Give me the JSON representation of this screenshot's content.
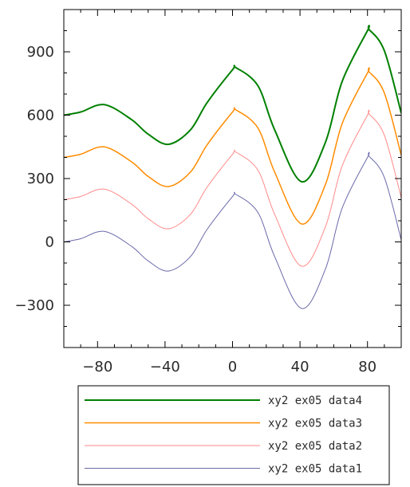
{
  "chart_data": {
    "type": "line",
    "title": "",
    "xlabel": "",
    "ylabel": "",
    "xlim": [
      -100,
      100
    ],
    "ylim": [
      -500,
      1100
    ],
    "xticks": [
      -80,
      -40,
      0,
      40,
      80
    ],
    "xtick_labels": [
      "−80",
      "−40",
      "0",
      "40",
      "80"
    ],
    "yticks": [
      -300,
      0,
      300,
      600,
      900
    ],
    "ytick_labels": [
      "−300",
      "0",
      "300",
      "600",
      "900"
    ],
    "grid": false,
    "legend_position": "bottom",
    "series": [
      {
        "name": "xy2 ex05 data4",
        "color": "#008000",
        "width": 2,
        "x": [
          -100,
          -90,
          -76,
          -60,
          -50,
          -38,
          -25,
          -15,
          0,
          2,
          15,
          25,
          41,
          55,
          65,
          80,
          81,
          90,
          100
        ],
        "y": [
          600,
          615,
          650,
          580,
          510,
          462,
          530,
          660,
          815,
          825,
          740,
          530,
          285,
          470,
          760,
          1000,
          1005,
          905,
          610
        ]
      },
      {
        "name": "xy2 ex05 data3",
        "color": "#ff8c00",
        "width": 1.5,
        "x": [
          -100,
          -90,
          -76,
          -60,
          -50,
          -38,
          -25,
          -15,
          0,
          2,
          15,
          25,
          41,
          55,
          65,
          80,
          81,
          90,
          100
        ],
        "y": [
          400,
          415,
          450,
          380,
          310,
          262,
          330,
          460,
          615,
          625,
          540,
          330,
          85,
          270,
          560,
          800,
          805,
          705,
          410
        ]
      },
      {
        "name": "xy2 ex05 data2",
        "color": "#ff8a8a",
        "width": 1,
        "x": [
          -100,
          -90,
          -76,
          -60,
          -50,
          -38,
          -25,
          -15,
          0,
          2,
          15,
          25,
          41,
          55,
          65,
          80,
          81,
          90,
          100
        ],
        "y": [
          200,
          215,
          250,
          180,
          110,
          62,
          130,
          260,
          415,
          425,
          340,
          130,
          -115,
          70,
          360,
          600,
          605,
          505,
          210
        ]
      },
      {
        "name": "xy2 ex05 data1",
        "color": "#6a6aaa",
        "width": 1,
        "x": [
          -100,
          -90,
          -76,
          -60,
          -50,
          -38,
          -25,
          -15,
          0,
          2,
          15,
          25,
          41,
          55,
          65,
          80,
          81,
          90,
          100
        ],
        "y": [
          0,
          15,
          50,
          -20,
          -90,
          -138,
          -70,
          60,
          215,
          225,
          140,
          -70,
          -315,
          -130,
          160,
          400,
          405,
          305,
          10
        ]
      }
    ]
  }
}
